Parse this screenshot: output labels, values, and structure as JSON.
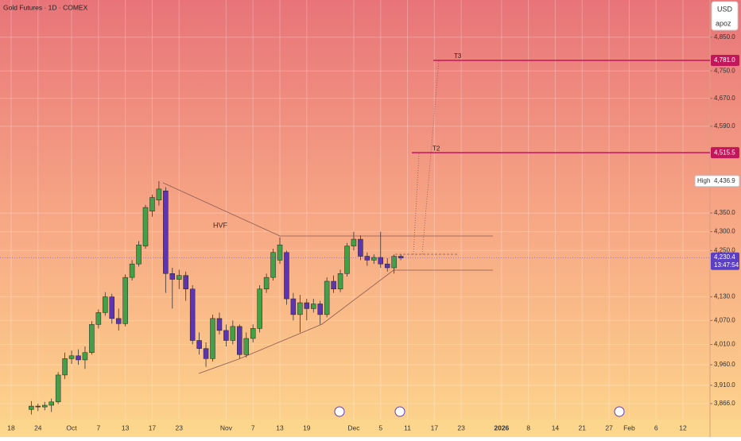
{
  "chart_data": {
    "type": "candlestick",
    "title": "Gold Futures · 1D · COMEX",
    "currency": "USD",
    "author": "apoz",
    "pattern_label": "HVF",
    "log_scale": true,
    "grid": true,
    "up_color": "#43a047",
    "down_color": "#5e35b1",
    "ylim": [
      3828,
      4963
    ],
    "yticks": [
      {
        "value": 4850,
        "label": "4,850.0"
      },
      {
        "value": 4750,
        "label": "4,750.0"
      },
      {
        "value": 4670,
        "label": "4,670.0"
      },
      {
        "value": 4590,
        "label": "4,590.0"
      },
      {
        "value": 4350,
        "label": "4,350.0"
      },
      {
        "value": 4300,
        "label": "4,300.0"
      },
      {
        "value": 4250,
        "label": "4,250.0"
      },
      {
        "value": 4130,
        "label": "4,130.0"
      },
      {
        "value": 4070,
        "label": "4,070.0"
      },
      {
        "value": 4010,
        "label": "4,010.0"
      },
      {
        "value": 3960,
        "label": "3,960.0"
      },
      {
        "value": 3910,
        "label": "3,910.0"
      },
      {
        "value": 3866,
        "label": "3,866.0"
      }
    ],
    "categories": [
      "18",
      null,
      null,
      null,
      "24",
      null,
      null,
      null,
      null,
      "Oct",
      null,
      null,
      null,
      "7",
      null,
      null,
      null,
      "13",
      null,
      null,
      null,
      "17",
      null,
      null,
      null,
      "23",
      null,
      null,
      null,
      null,
      null,
      null,
      "Nov",
      null,
      null,
      null,
      "7",
      null,
      null,
      null,
      "13",
      null,
      null,
      null,
      "19",
      null,
      null,
      null,
      null,
      null,
      null,
      "Dec",
      null,
      null,
      null,
      "5",
      null,
      null,
      null,
      "11",
      null,
      null,
      null,
      "17",
      null,
      null,
      null,
      "23",
      null,
      null,
      null,
      null,
      null,
      "2026",
      null,
      null,
      null,
      "8",
      null,
      null,
      null,
      "14",
      null,
      null,
      null,
      "21",
      null,
      null,
      null,
      "27",
      null,
      null,
      "Feb",
      null,
      null,
      null,
      "6",
      null,
      null,
      null,
      "12",
      null,
      null,
      null,
      null
    ],
    "open": [
      null,
      null,
      null,
      3852,
      3860,
      3858,
      3862,
      3870,
      3935,
      3975,
      3982,
      3972,
      3990,
      4060,
      4090,
      4130,
      4075,
      4062,
      4180,
      4215,
      4262,
      4355,
      4385,
      4410,
      4190,
      4175,
      4185,
      4150,
      4020,
      4000,
      3975,
      4075,
      4045,
      4020,
      4055,
      3985,
      4025,
      4050,
      4150,
      4180,
      4225,
      4245,
      4125,
      4085,
      4115,
      4100,
      4112,
      4085,
      4170,
      4150,
      4190,
      4262,
      4280,
      4235,
      4225,
      4232,
      4215,
      4205,
      4235,
      null,
      null,
      null,
      null,
      null,
      null,
      null,
      null,
      null,
      null,
      null,
      null,
      null,
      null,
      null,
      null,
      null,
      null,
      null,
      null,
      null,
      null,
      null,
      null,
      null,
      null,
      null,
      null,
      null,
      null,
      null,
      null,
      null,
      null,
      null,
      null,
      null,
      null,
      null,
      null,
      null,
      null,
      null,
      null,
      null,
      null
    ],
    "high": [
      null,
      null,
      null,
      3872,
      3866,
      3870,
      3878,
      3942,
      3990,
      3995,
      3998,
      4005,
      4068,
      4098,
      4142,
      4138,
      4100,
      4188,
      4225,
      4275,
      4372,
      4400,
      4436.9,
      4420,
      4205,
      4200,
      4195,
      4160,
      4040,
      4015,
      4085,
      4090,
      4060,
      4070,
      4060,
      4040,
      4060,
      4160,
      4190,
      4255,
      4285,
      4250,
      4140,
      4135,
      4125,
      4125,
      4120,
      4180,
      4185,
      4200,
      4270,
      4300,
      4290,
      4245,
      4240,
      4300,
      4230,
      4240,
      4240,
      null,
      null,
      null,
      null,
      null,
      null,
      null,
      null,
      null,
      null,
      null,
      null,
      null,
      null,
      null,
      null,
      null,
      null,
      null,
      null,
      null,
      null,
      null,
      null,
      null,
      null,
      null,
      null,
      null,
      null,
      null,
      null,
      null,
      null,
      null,
      null,
      null,
      null,
      null,
      null,
      null,
      null,
      null,
      null,
      null,
      null
    ],
    "low": [
      null,
      null,
      null,
      3840,
      3848,
      3850,
      3846,
      3865,
      3925,
      3962,
      3960,
      3950,
      3985,
      4050,
      4082,
      4062,
      4045,
      4055,
      4172,
      4208,
      4255,
      4340,
      4370,
      4140,
      4100,
      4150,
      4120,
      4010,
      3985,
      3955,
      3968,
      4035,
      4005,
      4010,
      3975,
      3978,
      4015,
      4040,
      4140,
      4172,
      4215,
      4110,
      4070,
      4040,
      4070,
      4090,
      4060,
      4078,
      4140,
      4142,
      4182,
      4250,
      4225,
      4210,
      4215,
      4205,
      4195,
      4190,
      4225,
      null,
      null,
      null,
      null,
      null,
      null,
      null,
      null,
      null,
      null,
      null,
      null,
      null,
      null,
      null,
      null,
      null,
      null,
      null,
      null,
      null,
      null,
      null,
      null,
      null,
      null,
      null,
      null,
      null,
      null,
      null,
      null,
      null,
      null,
      null,
      null,
      null,
      null,
      null,
      null,
      null,
      null,
      null,
      null,
      null,
      null
    ],
    "close": [
      null,
      null,
      null,
      3860,
      3858,
      3862,
      3870,
      3935,
      3975,
      3982,
      3972,
      3990,
      4060,
      4090,
      4130,
      4075,
      4062,
      4180,
      4215,
      4265,
      4365,
      4392,
      4415,
      4190,
      4175,
      4185,
      4150,
      4020,
      4000,
      3975,
      4075,
      4045,
      4020,
      4055,
      3985,
      4025,
      4050,
      4150,
      4180,
      4245,
      4265,
      4125,
      4085,
      4115,
      4100,
      4112,
      4085,
      4170,
      4150,
      4190,
      4262,
      4280,
      4235,
      4225,
      4232,
      4215,
      4205,
      4235,
      4230.4,
      null,
      null,
      null,
      null,
      null,
      null,
      null,
      null,
      null,
      null,
      null,
      null,
      null,
      null,
      null,
      null,
      null,
      null,
      null,
      null,
      null,
      null,
      null,
      null,
      null,
      null,
      null,
      null,
      null,
      null,
      null,
      null,
      null,
      null,
      null,
      null,
      null,
      null,
      null,
      null,
      null,
      null,
      null,
      null,
      null,
      null
    ],
    "levels": [
      {
        "name": "T3",
        "value": 4781,
        "value_label": "4,781.0",
        "color": "#c2185b"
      },
      {
        "name": "T2",
        "value": 4515.5,
        "value_label": "4,515.5",
        "color": "#c2185b"
      }
    ],
    "high_marker": {
      "name": "High",
      "value": 4436.9,
      "value_label": "4,436.9"
    },
    "last_price": {
      "value": 4230.4,
      "value_label": "4,230.4",
      "countdown": "13:47:54",
      "color": "#5b3fc4"
    }
  }
}
